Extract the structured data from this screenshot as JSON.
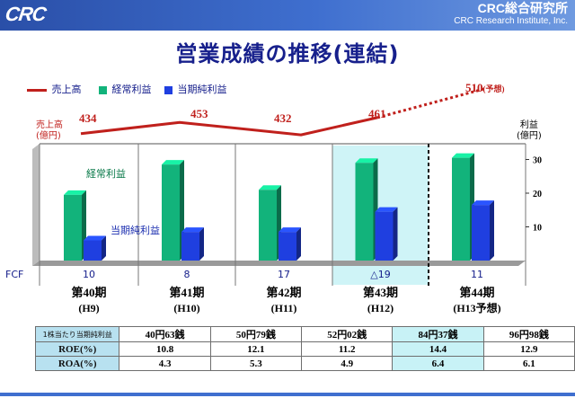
{
  "header": {
    "logo": "CRC",
    "company_jp": "CRC総合研究所",
    "company_en": "CRC Research Institute, Inc."
  },
  "title": "営業成績の推移(連結)",
  "legend": {
    "sales": "売上高",
    "ordinary": "経常利益",
    "net": "当期純利益"
  },
  "labels": {
    "sales_axis": [
      "売上高",
      "(億円)"
    ],
    "profit_axis": [
      "利益",
      "(億円)"
    ],
    "ordinary_inside": "経常利益",
    "net_inside": "当期純利益",
    "fcf": "FCF",
    "forecast": "510",
    "forecast_note": "(予想)"
  },
  "periods": [
    {
      "name": "第40期",
      "year": "(H9)"
    },
    {
      "name": "第41期",
      "year": "(H10)"
    },
    {
      "name": "第42期",
      "year": "(H11)"
    },
    {
      "name": "第43期",
      "year": "(H12)"
    },
    {
      "name": "第44期",
      "year": "(H13予想)"
    }
  ],
  "table": {
    "rows": [
      {
        "label": "1株当たり当期純利益",
        "values": [
          "40円63銭",
          "50円79銭",
          "52円02銭",
          "84円37銭",
          "96円98銭"
        ]
      },
      {
        "label": "ROE(%)",
        "values": [
          "10.8",
          "12.1",
          "11.2",
          "14.4",
          "12.9"
        ]
      },
      {
        "label": "ROA(%)",
        "values": [
          "4.3",
          "5.3",
          "4.9",
          "6.4",
          "6.1"
        ]
      }
    ]
  },
  "chart_data": {
    "type": "bar",
    "categories": [
      "第40期",
      "第41期",
      "第42期",
      "第43期",
      "第44期"
    ],
    "series": [
      {
        "name": "経常利益",
        "values": [
          19.5,
          28.5,
          21,
          29,
          30.5
        ],
        "color": "#12b37b"
      },
      {
        "name": "当期純利益",
        "values": [
          6,
          8.5,
          8.5,
          14.5,
          16.5
        ],
        "color": "#1f3fe0"
      }
    ],
    "line_series": {
      "name": "売上高",
      "values": [
        434,
        453,
        432,
        461,
        510
      ],
      "labels": [
        "434",
        "453",
        "432",
        "461",
        "510"
      ],
      "color": "#c0201c",
      "forecast_index": 4
    },
    "fcf": [
      "10",
      "8",
      "17",
      "△19",
      "11"
    ],
    "y_ticks": [
      10,
      20,
      30
    ],
    "ylim": [
      0,
      32
    ],
    "highlight_category": 3,
    "forecast_category": 4
  }
}
